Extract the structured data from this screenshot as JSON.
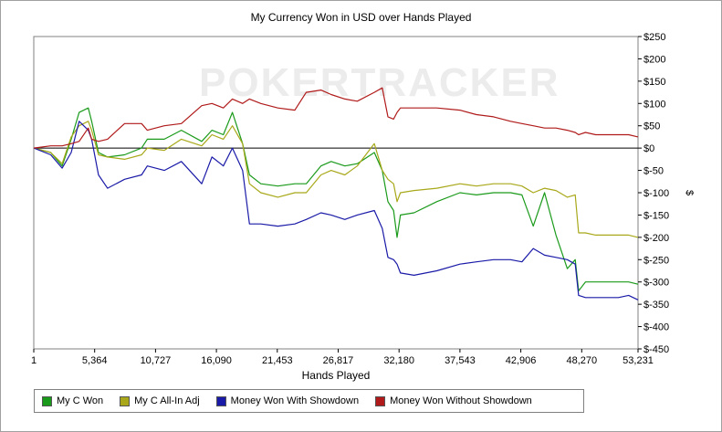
{
  "chart_data": {
    "type": "line",
    "title": "My Currency Won in USD over Hands Played",
    "xlabel": "Hands Played",
    "ylabel": "$",
    "watermark": "POKERTRACKER",
    "xlim": [
      1,
      53231
    ],
    "ylim": [
      -450,
      250
    ],
    "x_ticks": [
      1,
      5364,
      10727,
      16090,
      21453,
      26817,
      32180,
      37543,
      42906,
      48270,
      53231
    ],
    "x_tick_labels": [
      "1",
      "5,364",
      "10,727",
      "16,090",
      "21,453",
      "26,817",
      "32,180",
      "37,543",
      "42,906",
      "48,270",
      "53,231"
    ],
    "y_ticks": [
      250,
      200,
      150,
      100,
      50,
      0,
      -50,
      -100,
      -150,
      -200,
      -250,
      -300,
      -350,
      -400,
      -450
    ],
    "y_tick_labels": [
      "$250",
      "$200",
      "$150",
      "$100",
      "$50",
      "$0",
      "$-50",
      "$-100",
      "$-150",
      "$-200",
      "$-250",
      "$-300",
      "$-350",
      "$-400",
      "$-450"
    ],
    "y_axis_side": "right",
    "legend_position": "bottom",
    "series": [
      {
        "name": "My C Won",
        "color": "#1a9a1a",
        "x": [
          1,
          1500,
          2500,
          3300,
          4000,
          4800,
          5100,
          5700,
          6500,
          8000,
          9500,
          10000,
          11500,
          13000,
          14800,
          15700,
          16700,
          17500,
          18400,
          19000,
          20000,
          21500,
          23000,
          24000,
          25300,
          26200,
          27400,
          28500,
          30000,
          30700,
          31200,
          31700,
          32000,
          32300,
          33500,
          35500,
          37543,
          39000,
          40500,
          42000,
          43000,
          44000,
          45000,
          46000,
          47000,
          47700,
          48000,
          48600,
          49500,
          50500,
          51500,
          52400,
          53231
        ],
        "y": [
          0,
          -10,
          -40,
          20,
          80,
          90,
          60,
          -10,
          -20,
          -15,
          0,
          20,
          20,
          40,
          15,
          40,
          30,
          80,
          10,
          -60,
          -80,
          -85,
          -80,
          -80,
          -40,
          -30,
          -40,
          -35,
          -10,
          -50,
          -120,
          -140,
          -200,
          -150,
          -145,
          -120,
          -100,
          -105,
          -100,
          -100,
          -105,
          -175,
          -100,
          -195,
          -270,
          -250,
          -320,
          -300,
          -300,
          -300,
          -300,
          -300,
          -305
        ]
      },
      {
        "name": "My C All-In Adj",
        "color": "#a8a81a",
        "x": [
          1,
          1500,
          2500,
          3300,
          4000,
          4800,
          5100,
          5700,
          6500,
          8000,
          9500,
          10000,
          11500,
          13000,
          14800,
          15700,
          16700,
          17500,
          18400,
          19000,
          20000,
          21500,
          23000,
          24000,
          25300,
          26200,
          27400,
          28500,
          30000,
          30700,
          31200,
          31700,
          32000,
          32300,
          33500,
          35500,
          37543,
          39000,
          40500,
          42000,
          43000,
          44000,
          45000,
          46000,
          47000,
          47700,
          48000,
          48600,
          49500,
          50500,
          51500,
          52400,
          53231
        ],
        "y": [
          0,
          -10,
          -35,
          25,
          50,
          60,
          40,
          -15,
          -20,
          -25,
          -15,
          0,
          -5,
          20,
          5,
          30,
          20,
          50,
          10,
          -80,
          -100,
          -110,
          -100,
          -100,
          -60,
          -50,
          -60,
          -40,
          10,
          -50,
          -70,
          -80,
          -120,
          -100,
          -95,
          -90,
          -80,
          -85,
          -80,
          -80,
          -85,
          -100,
          -90,
          -95,
          -110,
          -105,
          -190,
          -190,
          -195,
          -195,
          -195,
          -195,
          -200
        ]
      },
      {
        "name": "Money Won With Showdown",
        "color": "#1a1aa8",
        "x": [
          1,
          1500,
          2500,
          3300,
          4000,
          4800,
          5100,
          5700,
          6500,
          8000,
          9500,
          10000,
          11500,
          13000,
          14800,
          15700,
          16700,
          17500,
          18400,
          19000,
          20000,
          21500,
          23000,
          24000,
          25300,
          26200,
          27400,
          28500,
          30000,
          30700,
          31200,
          31700,
          32000,
          32300,
          33500,
          35500,
          37543,
          39000,
          40500,
          42000,
          43000,
          44000,
          45000,
          46000,
          47000,
          47700,
          48000,
          48600,
          49500,
          50500,
          51500,
          52400,
          53231
        ],
        "y": [
          0,
          -15,
          -45,
          -10,
          60,
          40,
          20,
          -60,
          -90,
          -70,
          -60,
          -40,
          -50,
          -30,
          -80,
          -20,
          -40,
          0,
          -50,
          -170,
          -170,
          -175,
          -170,
          -160,
          -145,
          -150,
          -160,
          -150,
          -140,
          -180,
          -245,
          -250,
          -260,
          -280,
          -285,
          -275,
          -260,
          -255,
          -250,
          -250,
          -255,
          -225,
          -240,
          -245,
          -250,
          -260,
          -330,
          -335,
          -335,
          -335,
          -335,
          -330,
          -340
        ]
      },
      {
        "name": "Money Won Without Showdown",
        "color": "#b01a1a",
        "x": [
          1,
          1500,
          2500,
          3300,
          4000,
          4800,
          5100,
          5700,
          6500,
          8000,
          9500,
          10000,
          11500,
          13000,
          14800,
          15700,
          16700,
          17500,
          18400,
          19000,
          20000,
          21500,
          23000,
          24000,
          25300,
          26200,
          27400,
          28500,
          30000,
          30700,
          31200,
          31700,
          32000,
          32300,
          33500,
          35500,
          37543,
          39000,
          40500,
          42000,
          43000,
          44000,
          45000,
          46000,
          47000,
          47700,
          48000,
          48600,
          49500,
          50500,
          51500,
          52400,
          53231
        ],
        "y": [
          0,
          5,
          5,
          10,
          15,
          45,
          20,
          15,
          20,
          55,
          55,
          40,
          50,
          55,
          95,
          100,
          90,
          110,
          100,
          110,
          100,
          90,
          85,
          125,
          130,
          120,
          110,
          105,
          125,
          135,
          70,
          65,
          80,
          90,
          90,
          90,
          85,
          75,
          70,
          60,
          55,
          50,
          45,
          45,
          40,
          35,
          30,
          35,
          30,
          30,
          30,
          30,
          25
        ]
      }
    ]
  }
}
